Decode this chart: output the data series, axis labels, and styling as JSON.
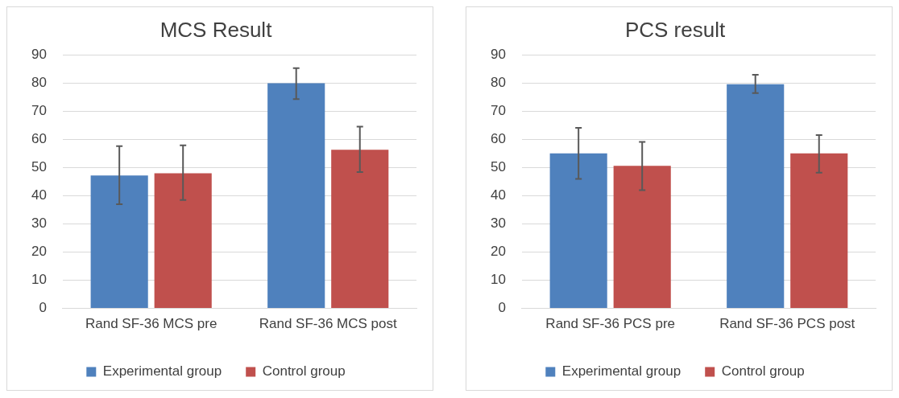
{
  "chart_data": [
    {
      "type": "bar",
      "title": "MCS Result",
      "categories": [
        "Rand SF-36 MCS pre",
        "Rand SF-36 MCS post"
      ],
      "series": [
        {
          "name": "Experimental group",
          "color": "#4f81bd",
          "values": [
            47.2,
            79.9
          ],
          "errors": [
            [
              37.0,
              57.6
            ],
            [
              74.3,
              85.3
            ]
          ]
        },
        {
          "name": "Control group",
          "color": "#c0504d",
          "values": [
            48.0,
            56.3
          ],
          "errors": [
            [
              38.5,
              57.9
            ],
            [
              48.4,
              64.5
            ]
          ]
        }
      ],
      "ylim": [
        0,
        90
      ],
      "yticks": [
        0,
        10,
        20,
        30,
        40,
        50,
        60,
        70,
        80,
        90
      ],
      "grid": "y",
      "legend": "bottom"
    },
    {
      "type": "bar",
      "title": "PCS result",
      "categories": [
        "Rand SF-36 PCS pre",
        "Rand SF-36 PCS post"
      ],
      "series": [
        {
          "name": "Experimental group",
          "color": "#4f81bd",
          "values": [
            55.0,
            79.6
          ],
          "errors": [
            [
              46.0,
              64.1
            ],
            [
              76.4,
              82.9
            ]
          ]
        },
        {
          "name": "Control group",
          "color": "#c0504d",
          "values": [
            50.6,
            55.0
          ],
          "errors": [
            [
              42.0,
              59.1
            ],
            [
              48.2,
              61.5
            ]
          ]
        }
      ],
      "ylim": [
        0,
        90
      ],
      "yticks": [
        0,
        10,
        20,
        30,
        40,
        50,
        60,
        70,
        80,
        90
      ],
      "grid": "y",
      "legend": "bottom"
    }
  ]
}
